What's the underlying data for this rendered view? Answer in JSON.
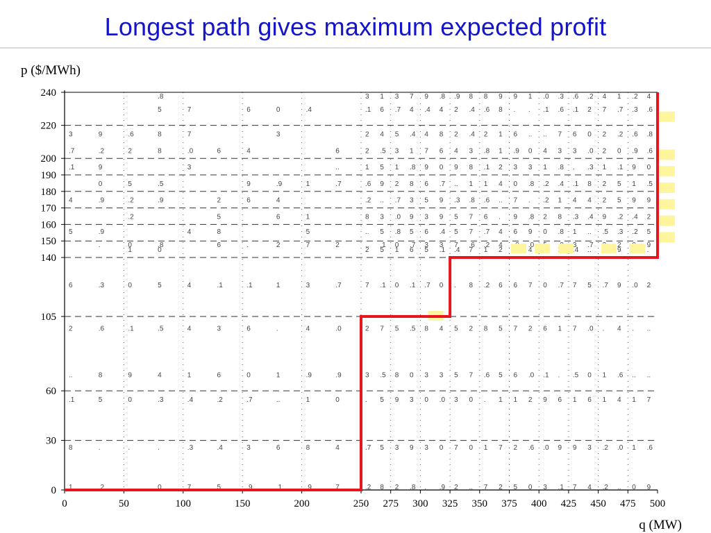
{
  "title": "Longest path gives maximum expected profit",
  "chart_data": {
    "type": "line",
    "ylabel": "p ($/MWh)",
    "xlabel": "q (MW)",
    "x_ticks": [
      0,
      50,
      100,
      150,
      200,
      250,
      275,
      300,
      325,
      350,
      375,
      400,
      425,
      450,
      475,
      500
    ],
    "y_ticks": [
      0,
      30,
      60,
      105,
      140,
      150,
      160,
      170,
      180,
      190,
      200,
      220,
      240
    ],
    "xlim": [
      0,
      500
    ],
    "ylim": [
      0,
      240
    ],
    "grid": "dashed horizontal, dotted vertical",
    "series": [
      {
        "path_color": "#e8141e",
        "x": [
          0,
          250,
          250,
          325,
          325,
          500,
          500
        ],
        "y": [
          0,
          0,
          105,
          105,
          140,
          140,
          240
        ]
      }
    ],
    "highlight_color": "#fff59d"
  }
}
